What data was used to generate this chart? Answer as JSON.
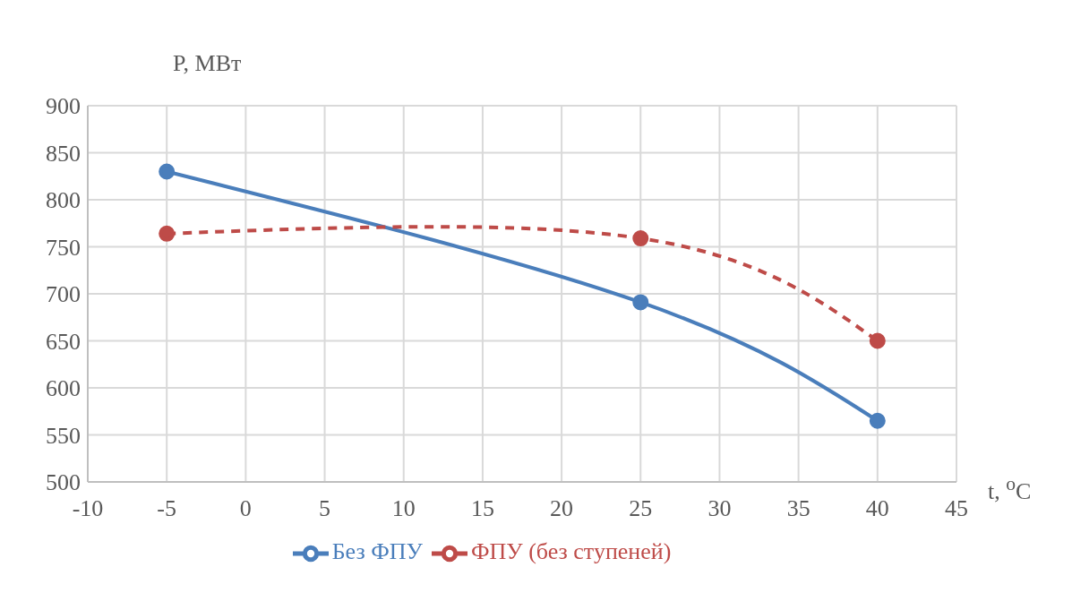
{
  "chart_data": {
    "type": "line",
    "xlabel": "t, $^{o}$C",
    "ylabel": "P, МВт",
    "x": [
      -5,
      25,
      40
    ],
    "series": [
      {
        "name": "Без ФПУ",
        "color": "#4a7ebb",
        "values": [
          830,
          691,
          565
        ],
        "line_style": "solid"
      },
      {
        "name": "ФПУ (без ступеней)",
        "color": "#be4b48",
        "values": [
          764,
          759,
          650
        ],
        "line_style": "dashed"
      }
    ],
    "xlim": [
      -10,
      45
    ],
    "xticks": [
      -10,
      -5,
      0,
      5,
      10,
      15,
      20,
      25,
      30,
      35,
      40,
      45
    ],
    "ylim": [
      500,
      900
    ],
    "yticks": [
      500,
      550,
      600,
      650,
      700,
      750,
      800,
      850,
      900
    ],
    "grid": true,
    "legend": "bottom",
    "marker": "circle"
  }
}
